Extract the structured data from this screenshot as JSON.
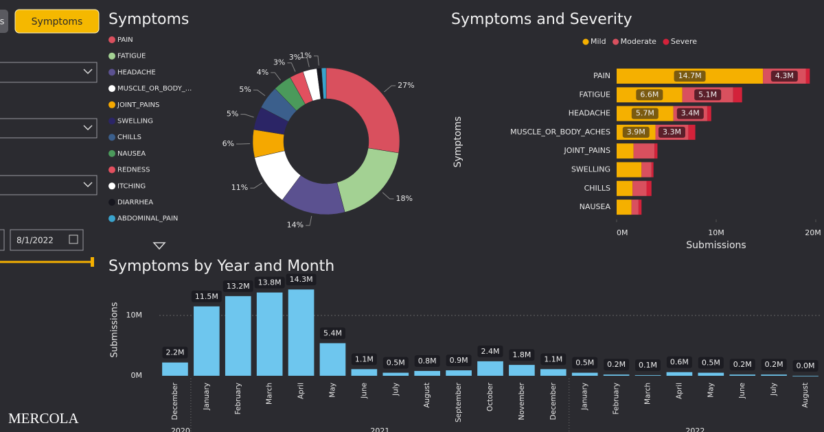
{
  "ui": {
    "tabs": [
      "s",
      "Symptoms"
    ],
    "date_end": "8/1/2022",
    "watermark": "MERCOLA"
  },
  "chart_data": [
    {
      "type": "donut",
      "title": "Symptoms",
      "categories": [
        "PAIN",
        "FATIGUE",
        "HEADACHE",
        "MUSCLE_OR_BODY_...",
        "JOINT_PAINS",
        "SWELLING",
        "CHILLS",
        "NAUSEA",
        "REDNESS",
        "ITCHING",
        "DIARRHEA",
        "ABDOMINAL_PAIN"
      ],
      "values": [
        27,
        18,
        14,
        11,
        6,
        5,
        5,
        4,
        3,
        3,
        1,
        1
      ],
      "value_labels": [
        "27%",
        "18%",
        "14%",
        "11%",
        "6%",
        "5%",
        "5%",
        "4%",
        "3%",
        "3%",
        "1%",
        null
      ],
      "colors": [
        "#d9505e",
        "#a3d193",
        "#5b5190",
        "#ffffff",
        "#f5a800",
        "#2b2566",
        "#3b5f8c",
        "#4b9a5b",
        "#e2505f",
        "#ffffff",
        "#16161e",
        "#3aa3cc"
      ]
    },
    {
      "type": "stacked-barh",
      "title": "Symptoms and Severity",
      "categories": [
        "PAIN",
        "FATIGUE",
        "HEADACHE",
        "MUSCLE_OR_BODY_ACHES",
        "JOINT_PAINS",
        "SWELLING",
        "CHILLS",
        "NAUSEA"
      ],
      "series": [
        {
          "name": "Mild",
          "color": "#f5b000",
          "values": [
            14700000,
            6600000,
            5700000,
            3900000,
            1700000,
            2500000,
            1600000,
            1500000
          ],
          "value_labels": [
            "14.7M",
            "6.6M",
            "5.7M",
            "3.9M",
            null,
            null,
            null,
            null
          ]
        },
        {
          "name": "Moderate",
          "color": "#d9505e",
          "values": [
            4300000,
            5100000,
            3400000,
            3300000,
            2100000,
            1000000,
            1400000,
            700000
          ],
          "value_labels": [
            "4.3M",
            "5.1M",
            "3.4M",
            "3.3M",
            null,
            null,
            null,
            null
          ]
        },
        {
          "name": "Severe",
          "color": "#d3223a",
          "values": [
            400000,
            900000,
            400000,
            700000,
            300000,
            200000,
            500000,
            300000
          ]
        }
      ],
      "xlabel": "Submissions",
      "ylabel": "Symptoms",
      "xlim": [
        0,
        20000000
      ],
      "xticks": [
        {
          "value": 0,
          "label": "0M"
        },
        {
          "value": 10000000,
          "label": "10M"
        },
        {
          "value": 20000000,
          "label": "20M"
        }
      ]
    },
    {
      "type": "bar",
      "title": "Symptoms by Year and Month",
      "color": "#6ec6ee",
      "categories": [
        "December",
        "January",
        "February",
        "March",
        "April",
        "May",
        "June",
        "July",
        "August",
        "September",
        "October",
        "November",
        "December",
        "January",
        "February",
        "March",
        "April",
        "May",
        "June",
        "July",
        "August"
      ],
      "years": [
        {
          "label": "2020",
          "from": 0,
          "to": 0
        },
        {
          "label": "2021",
          "from": 1,
          "to": 12
        },
        {
          "label": "2022",
          "from": 13,
          "to": 20
        }
      ],
      "values": [
        2200000,
        11500000,
        13200000,
        13800000,
        14300000,
        5400000,
        1100000,
        500000,
        800000,
        900000,
        2400000,
        1800000,
        1100000,
        500000,
        200000,
        100000,
        600000,
        500000,
        200000,
        200000,
        0
      ],
      "value_labels": [
        "2.2M",
        "11.5M",
        "13.2M",
        "13.8M",
        "14.3M",
        "5.4M",
        "1.1M",
        "0.5M",
        "0.8M",
        "0.9M",
        "2.4M",
        "1.8M",
        "1.1M",
        "0.5M",
        "0.2M",
        "0.1M",
        "0.6M",
        "0.5M",
        "0.2M",
        "0.2M",
        "0.0M"
      ],
      "ylabel": "Submissions",
      "ylim": [
        0,
        15000000
      ],
      "yticks": [
        {
          "value": 0,
          "label": "0M"
        },
        {
          "value": 10000000,
          "label": "10M"
        }
      ],
      "grid": true
    }
  ]
}
